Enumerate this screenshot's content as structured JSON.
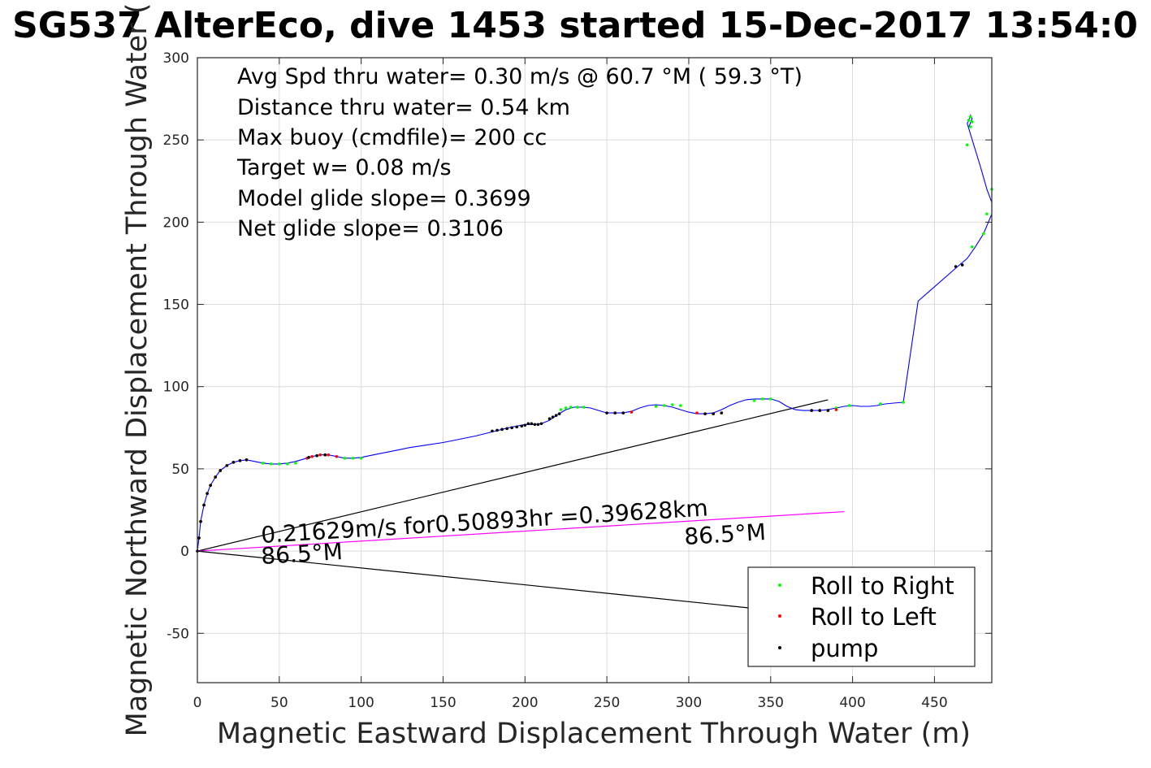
{
  "chart_data": {
    "type": "scatter",
    "title": "SG537 AlterEco, dive 1453 started 15-Dec-2017 13:54:0",
    "xlabel": "Magnetic Eastward Displacement Through Water (m)",
    "ylabel": "Magnetic Northward Displacement Through Water (",
    "xlim": [
      0,
      485
    ],
    "ylim": [
      -80,
      300
    ],
    "xticks": [
      0,
      50,
      100,
      150,
      200,
      250,
      300,
      350,
      400,
      450
    ],
    "yticks": [
      -50,
      0,
      50,
      100,
      150,
      200,
      250,
      300
    ],
    "grid": true,
    "legend_position": "bottom-right",
    "annotations": [
      "Avg Spd thru water=  0.30 m/s @  60.7 °M ( 59.3 °T)",
      "Distance thru water=  0.54 km",
      "Max buoy (cmdfile)= 200 cc",
      "Target w= 0.08 m/s",
      "Model glide slope= 0.3699",
      "Net glide slope= 0.3106"
    ],
    "current_text": "0.21629m/s for0.50893hr =0.39628km",
    "heading_start": "86.5°M",
    "heading_end": "86.5°M",
    "track": {
      "color": "#0000ff",
      "x": [
        0,
        1,
        2,
        4,
        6,
        8,
        11,
        14,
        18,
        22,
        26,
        30,
        35,
        40,
        45,
        50,
        55,
        60,
        65,
        70,
        75,
        80,
        85,
        90,
        95,
        100,
        110,
        120,
        130,
        140,
        150,
        160,
        170,
        180,
        190,
        200,
        205,
        210,
        215,
        220,
        225,
        230,
        235,
        240,
        245,
        250,
        255,
        260,
        265,
        270,
        275,
        280,
        285,
        290,
        295,
        300,
        305,
        310,
        315,
        320,
        325,
        330,
        335,
        340,
        345,
        350,
        355,
        360,
        365,
        370,
        375,
        380,
        385,
        390,
        395,
        400,
        405,
        410,
        415,
        420,
        425,
        431,
        440,
        463,
        470,
        475,
        480,
        485,
        485,
        482,
        478,
        474,
        470,
        471,
        472,
        473,
        471
      ],
      "y": [
        0,
        8,
        18,
        28,
        35,
        40,
        45,
        49,
        52,
        54,
        55,
        55.5,
        54.5,
        53.5,
        53,
        53,
        53.5,
        54.5,
        56,
        57.5,
        58.5,
        58.5,
        57.5,
        56.5,
        56.5,
        57,
        59,
        61,
        63,
        64.5,
        66,
        68,
        70,
        72.5,
        75,
        77,
        77,
        77.5,
        79.5,
        83,
        86,
        87.5,
        87.5,
        87,
        85.5,
        84,
        84,
        84,
        85,
        87,
        88.5,
        89,
        88.5,
        87.5,
        86,
        84.5,
        83.5,
        83.5,
        84,
        86,
        88.5,
        90.5,
        92,
        92.5,
        92.5,
        92.5,
        91,
        88,
        86,
        85.5,
        85.5,
        85.5,
        86,
        87,
        88,
        88.5,
        88,
        88,
        88.5,
        89.5,
        90,
        90.5,
        152,
        172,
        178,
        185,
        193,
        205,
        212,
        220,
        234,
        247,
        260,
        262,
        265,
        263,
        258
      ]
    },
    "series": [
      {
        "name": "Roll to Right",
        "color": "#00ff00",
        "x": [
          40,
          45,
          50,
          55,
          60,
          90,
          95,
          100,
          222,
          225,
          228,
          232,
          236,
          280,
          285,
          290,
          295,
          340,
          345,
          350,
          390,
          398,
          417,
          431,
          470,
          472,
          473,
          472,
          471,
          482,
          485,
          480,
          473
        ],
        "y": [
          53.5,
          53,
          53,
          53,
          53.5,
          56.5,
          56.5,
          56.5,
          86,
          87,
          87.5,
          87.5,
          87.5,
          88,
          88.5,
          89,
          88.5,
          91.5,
          92.5,
          92.5,
          87,
          88.5,
          89.5,
          90.5,
          247,
          258,
          261,
          264,
          262,
          205,
          220,
          193,
          185
        ]
      },
      {
        "name": "Roll to Left",
        "color": "#ff0000",
        "x": [
          1,
          2,
          4,
          6,
          8,
          11,
          14,
          18,
          22,
          26,
          30,
          67,
          70,
          75,
          78,
          80,
          85,
          250,
          255,
          260,
          265,
          305,
          310,
          315,
          320,
          375,
          380,
          385,
          390
        ],
        "y": [
          8,
          18,
          28,
          35,
          40,
          45,
          49,
          52,
          54,
          55,
          55.5,
          56.5,
          57.5,
          58.5,
          58.5,
          58.5,
          57.5,
          84,
          84,
          84,
          84.5,
          84,
          83.5,
          83.5,
          84,
          85.5,
          85.5,
          85.5,
          86
        ]
      },
      {
        "name": "pump",
        "color": "#000000",
        "x": [
          0,
          1,
          2,
          4,
          6,
          8,
          11,
          14,
          18,
          22,
          26,
          30,
          68,
          73,
          78,
          180,
          183,
          186,
          189,
          192,
          195,
          198,
          200,
          202,
          204,
          206,
          208,
          210,
          215,
          217,
          219,
          221,
          250,
          255,
          260,
          310,
          315,
          320,
          375,
          380,
          385,
          463,
          467
        ],
        "y": [
          0,
          8,
          18,
          28,
          35,
          40,
          45,
          49,
          52,
          54,
          55,
          55.5,
          57,
          58,
          58.5,
          73,
          73.5,
          74,
          74.5,
          75,
          75.5,
          76,
          76.5,
          77.5,
          77.5,
          77,
          77,
          77.5,
          80.5,
          81.5,
          82.5,
          83.5,
          84,
          84,
          84,
          83.5,
          83.5,
          84,
          85.5,
          85.5,
          85.5,
          173,
          174
        ]
      }
    ],
    "reference_lines": [
      {
        "color": "#000000",
        "x": [
          0,
          385
        ],
        "y": [
          0,
          92
        ]
      },
      {
        "color": "#000000",
        "x": [
          0,
          390
        ],
        "y": [
          0,
          -40
        ]
      },
      {
        "color": "#ff00ff",
        "x": [
          0,
          395
        ],
        "y": [
          0,
          24
        ]
      }
    ]
  }
}
